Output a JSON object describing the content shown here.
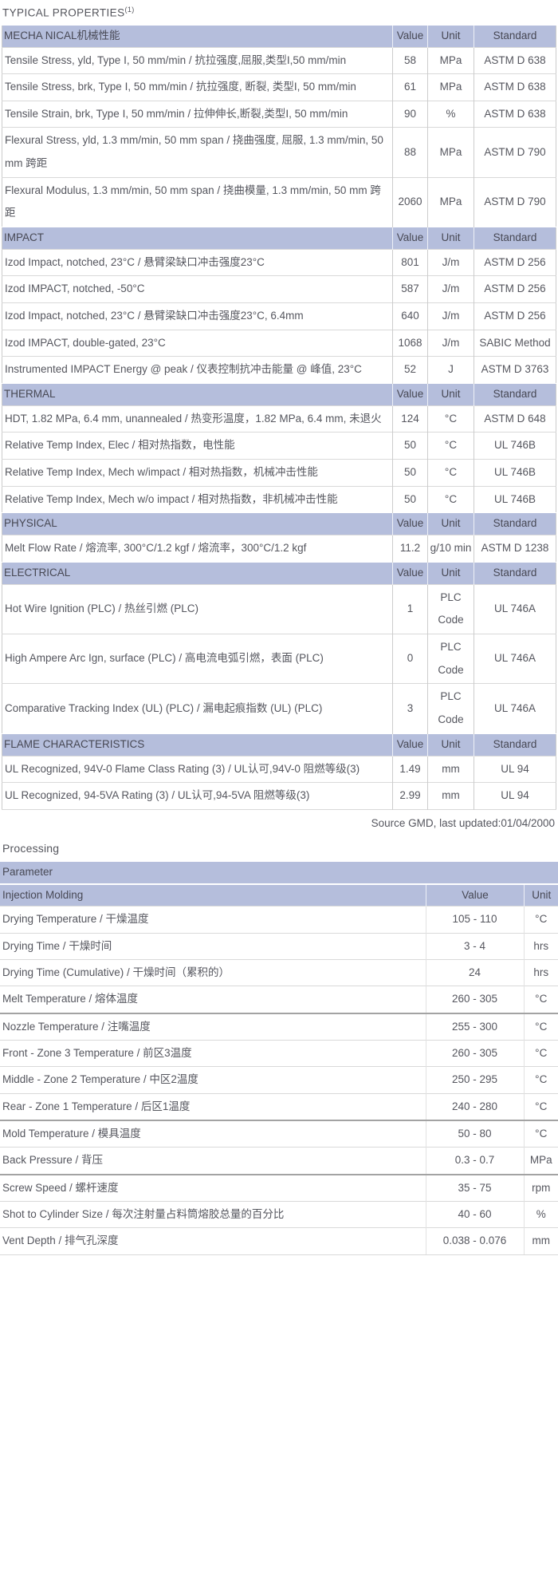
{
  "title": {
    "text": "TYPICAL PROPERTIES",
    "superscript": "(1)"
  },
  "colors": {
    "header_bg": "#b5bedc",
    "header_text": "#474854",
    "body_text": "#55565e",
    "row_line": "#d9d9d9",
    "dark_line": "#a3a3a3"
  },
  "properties_table": {
    "header_labels": [
      "Value",
      "Unit",
      "Standard"
    ],
    "sections": [
      {
        "name": "MECHA NICAL机械性能",
        "rows": [
          {
            "property": "Tensile Stress, yld, Type I, 50 mm/min / 抗拉强度,屈服,类型I,50 mm/min",
            "value": "58",
            "unit": "MPa",
            "standard": "ASTM D 638"
          },
          {
            "property": "Tensile Stress, brk, Type I, 50 mm/min / 抗拉强度, 断裂, 类型I, 50 mm/min",
            "value": "61",
            "unit": "MPa",
            "standard": "ASTM D 638"
          },
          {
            "property": "Tensile Strain, brk, Type I, 50 mm/min / 拉伸伸长,断裂,类型I, 50 mm/min",
            "value": "90",
            "unit": "%",
            "standard": "ASTM D 638"
          },
          {
            "property": "Flexural Stress, yld, 1.3 mm/min, 50 mm span / 挠曲强度, 屈服, 1.3 mm/min, 50 mm 跨距",
            "value": "88",
            "unit": "MPa",
            "standard": "ASTM D 790"
          },
          {
            "property": "Flexural Modulus, 1.3 mm/min, 50 mm span / 挠曲模量, 1.3 mm/min, 50 mm 跨距",
            "value": "2060",
            "unit": "MPa",
            "standard": "ASTM D 790"
          }
        ]
      },
      {
        "name": "IMPACT",
        "rows": [
          {
            "property": "Izod Impact, notched, 23°C / 悬臂梁缺口冲击强度23°C",
            "value": "801",
            "unit": "J/m",
            "standard": "ASTM D 256"
          },
          {
            "property": "Izod IMPACT, notched, -50°C",
            "value": "587",
            "unit": "J/m",
            "standard": "ASTM D 256"
          },
          {
            "property": "Izod Impact, notched, 23°C / 悬臂梁缺口冲击强度23°C, 6.4mm",
            "value": "640",
            "unit": "J/m",
            "standard": "ASTM D 256"
          },
          {
            "property": "Izod IMPACT, double-gated, 23°C",
            "value": "1068",
            "unit": "J/m",
            "standard": "SABIC Method"
          },
          {
            "property": "Instrumented IMPACT Energy @ peak / 仪表控制抗冲击能量 @ 峰值, 23°C",
            "value": "52",
            "unit": "J",
            "standard": "ASTM D 3763"
          }
        ]
      },
      {
        "name": "THERMAL",
        "rows": [
          {
            "property": "HDT, 1.82 MPa, 6.4 mm, unannealed / 热变形温度，1.82 MPa, 6.4 mm, 未退火",
            "value": "124",
            "unit": "°C",
            "standard": "ASTM D 648"
          },
          {
            "property": "Relative Temp Index, Elec / 相对热指数，电性能",
            "value": "50",
            "unit": "°C",
            "standard": "UL 746B"
          },
          {
            "property": "Relative Temp Index, Mech w/impact / 相对热指数，机械冲击性能",
            "value": "50",
            "unit": "°C",
            "standard": "UL 746B"
          },
          {
            "property": "Relative Temp Index, Mech w/o impact / 相对热指数，非机械冲击性能",
            "value": "50",
            "unit": "°C",
            "standard": "UL 746B"
          }
        ]
      },
      {
        "name": "PHYSICAL",
        "rows": [
          {
            "property": "Melt Flow Rate / 熔流率, 300°C/1.2 kgf / 熔流率，300°C/1.2 kgf",
            "value": "11.2",
            "unit": "g/10 min",
            "standard": "ASTM D 1238"
          }
        ]
      },
      {
        "name": "ELECTRICAL",
        "rows": [
          {
            "property": "Hot Wire Ignition (PLC) / 热丝引燃 (PLC)",
            "value": "1",
            "unit": "PLC Code",
            "standard": "UL 746A"
          },
          {
            "property": "High Ampere Arc Ign, surface (PLC) / 高电流电弧引燃，表面 (PLC)",
            "value": "0",
            "unit": "PLC Code",
            "standard": "UL 746A"
          },
          {
            "property": "Comparative Tracking Index (UL) (PLC) / 漏电起痕指数 (UL) (PLC)",
            "value": "3",
            "unit": "PLC Code",
            "standard": "UL 746A"
          }
        ]
      },
      {
        "name": "FLAME CHARACTERISTICS",
        "rows": [
          {
            "property": "UL Recognized, 94V-0 Flame Class Rating (3) / UL认可,94V-0 阻燃等级(3)",
            "value": "1.49",
            "unit": "mm",
            "standard": "UL 94"
          },
          {
            "property": "UL Recognized, 94-5VA Rating (3) / UL认可,94-5VA 阻燃等级(3)",
            "value": "2.99",
            "unit": "mm",
            "standard": "UL 94"
          }
        ]
      }
    ]
  },
  "source_note": "Source GMD, last updated:01/04/2000",
  "processing": {
    "heading": "Processing",
    "table": {
      "header": "Parameter",
      "subheader_label": "Injection Molding",
      "value_label": "Value",
      "unit_label": "Unit",
      "rows": [
        {
          "parameter": "Drying Temperature / 干燥温度",
          "value": "105 - 110",
          "unit": "°C",
          "group_start": false
        },
        {
          "parameter": "Drying Time / 干燥时间",
          "value": "3 - 4",
          "unit": "hrs",
          "group_start": false
        },
        {
          "parameter": "Drying Time (Cumulative) / 干燥时间（累积的）",
          "value": "24",
          "unit": "hrs",
          "group_start": false
        },
        {
          "parameter": "Melt Temperature / 熔体温度",
          "value": "260 - 305",
          "unit": "°C",
          "group_start": false
        },
        {
          "parameter": "Nozzle Temperature / 注嘴温度",
          "value": "255 - 300",
          "unit": "°C",
          "group_start": true
        },
        {
          "parameter": "Front - Zone 3 Temperature / 前区3温度",
          "value": "260 - 305",
          "unit": "°C",
          "group_start": false
        },
        {
          "parameter": "Middle - Zone 2 Temperature / 中区2温度",
          "value": "250 - 295",
          "unit": "°C",
          "group_start": false
        },
        {
          "parameter": "Rear - Zone 1 Temperature / 后区1温度",
          "value": "240 - 280",
          "unit": "°C",
          "group_start": false
        },
        {
          "parameter": "Mold Temperature / 模具温度",
          "value": "50 - 80",
          "unit": "°C",
          "group_start": true
        },
        {
          "parameter": "Back Pressure / 背压",
          "value": "0.3 - 0.7",
          "unit": "MPa",
          "group_start": false
        },
        {
          "parameter": "Screw Speed / 螺杆速度",
          "value": "35 - 75",
          "unit": "rpm",
          "group_start": true
        },
        {
          "parameter": "Shot to Cylinder Size / 每次注射量占料筒熔胶总量的百分比",
          "value": "40 - 60",
          "unit": "%",
          "group_start": false
        },
        {
          "parameter": "Vent Depth / 排气孔深度",
          "value": "0.038 - 0.076",
          "unit": "mm",
          "group_start": false
        }
      ]
    }
  }
}
